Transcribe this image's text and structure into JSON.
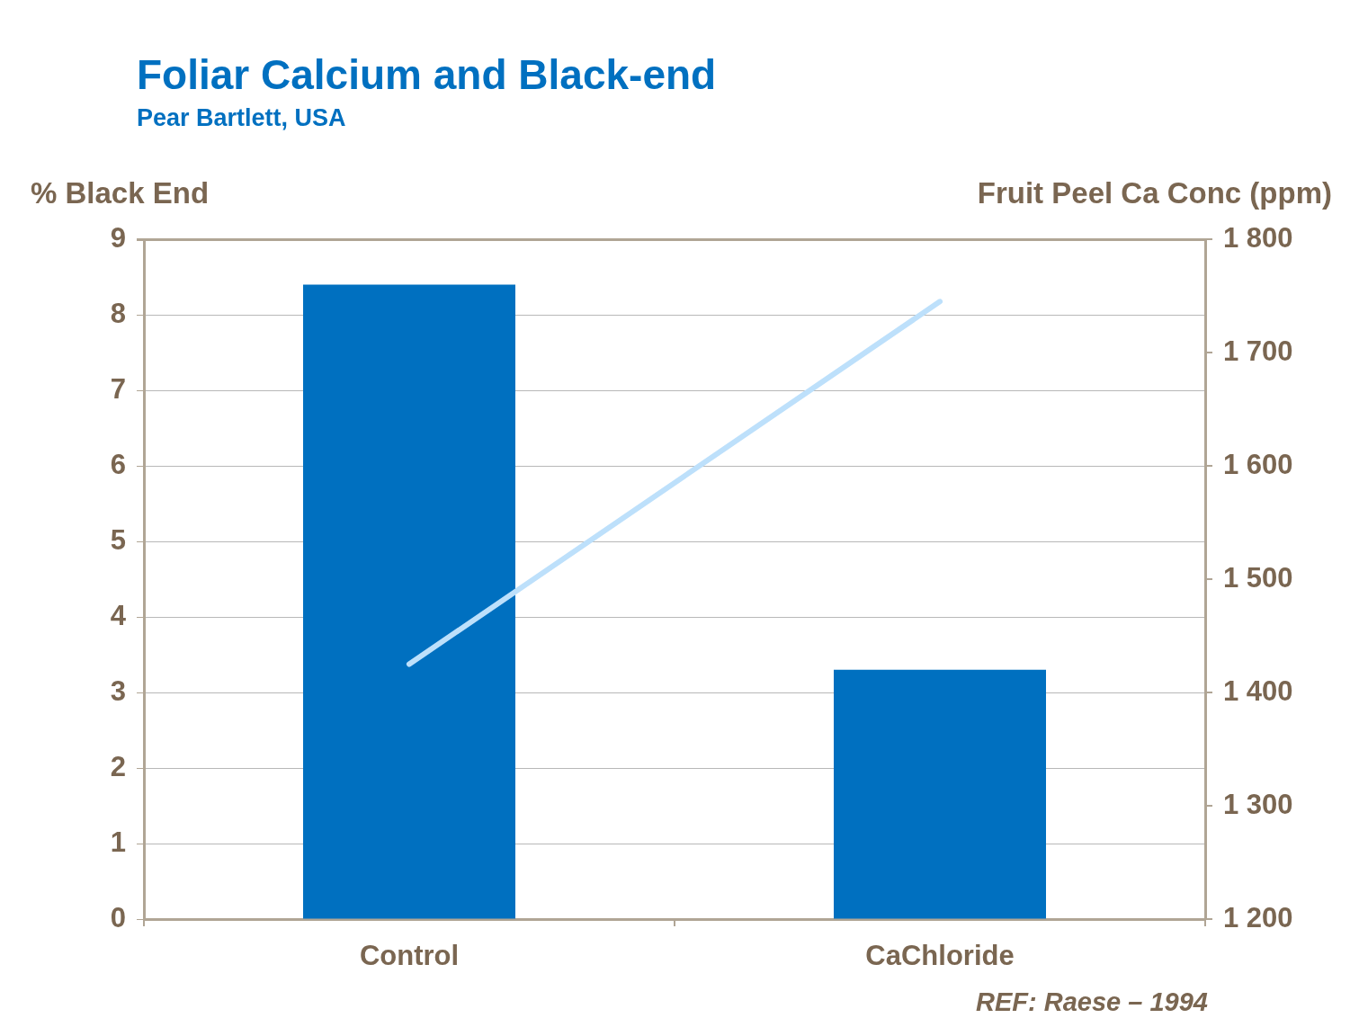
{
  "chart_data": {
    "type": "bar",
    "title": "Foliar Calcium and Black-end",
    "subtitle": "Pear Bartlett, USA",
    "ylabel": "% Black End",
    "y2label": "Fruit Peel Ca Conc (ppm)",
    "categories": [
      "Control",
      "CaChloride"
    ],
    "series": [
      {
        "color": "#0070c0",
        "values": [
          8.4,
          3.3
        ]
      },
      {
        "type": "line",
        "color": "#bde0fb",
        "values": [
          1425,
          1745
        ],
        "axis": "y2"
      }
    ],
    "ylim": [
      0,
      9
    ],
    "yticks": [
      0,
      1,
      2,
      3,
      4,
      5,
      6,
      7,
      8,
      9
    ],
    "y2lim": [
      1200,
      1800
    ],
    "y2ticks": [
      {
        "value": 1200,
        "label": "1 200"
      },
      {
        "value": 1300,
        "label": "1 300"
      },
      {
        "value": 1400,
        "label": "1 400"
      },
      {
        "value": 1500,
        "label": "1 500"
      },
      {
        "value": 1600,
        "label": "1 600"
      },
      {
        "value": 1700,
        "label": "1 700"
      },
      {
        "value": 1800,
        "label": "1 800"
      }
    ],
    "grid": "y",
    "marker": "none",
    "line_style": "solid",
    "annotations": [
      "REF: Raese – 1994"
    ]
  }
}
